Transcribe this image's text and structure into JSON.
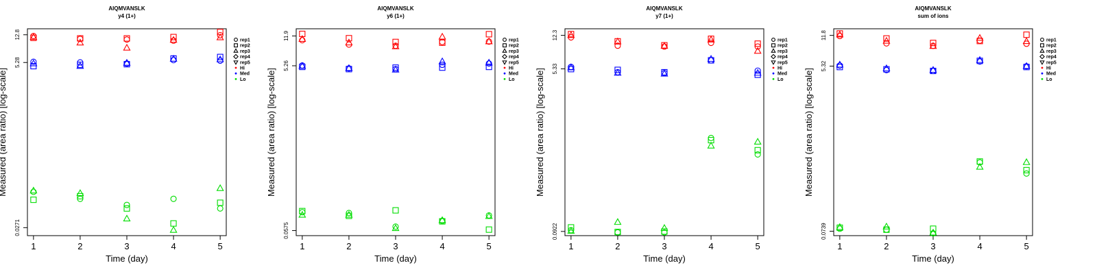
{
  "legend": [
    {
      "label": "rep1",
      "kind": "shape",
      "shape": "circle"
    },
    {
      "label": "rep2",
      "kind": "shape",
      "shape": "square"
    },
    {
      "label": "rep3",
      "kind": "shape",
      "shape": "triangle"
    },
    {
      "label": "rep4",
      "kind": "shape",
      "shape": "diamond"
    },
    {
      "label": "rep5",
      "kind": "shape",
      "shape": "triangle-down"
    },
    {
      "label": "Hi",
      "kind": "color",
      "color": "#ff0000"
    },
    {
      "label": "Med",
      "kind": "color",
      "color": "#0000ff"
    },
    {
      "label": "Lo",
      "kind": "color",
      "color": "#00dd00"
    }
  ],
  "colors": {
    "Hi": "#ff0000",
    "Med": "#0000ff",
    "Lo": "#00dd00"
  },
  "chart_data": [
    {
      "type": "scatter",
      "title": "AIQMVANSLK",
      "subtitle": "y4 (1+)",
      "xlabel": "Time (day)",
      "ylabel": "Measured (area ratio) [log-scale]",
      "x_ticks": [
        1,
        2,
        3,
        4,
        5
      ],
      "y_ticks": [
        "12.8",
        "5.28",
        "0.0271"
      ],
      "y_scale": "log",
      "ylim": [
        0.021,
        15.5
      ],
      "series": [
        {
          "group": "Hi",
          "rep": "rep1",
          "x": [
            1,
            2,
            3,
            4,
            5
          ],
          "y": [
            12.3,
            11.2,
            11.0,
            10.6,
            12.6
          ]
        },
        {
          "group": "Hi",
          "rep": "rep2",
          "x": [
            1,
            2,
            3,
            4,
            5
          ],
          "y": [
            11.6,
            11.4,
            11.4,
            11.9,
            14.0
          ]
        },
        {
          "group": "Hi",
          "rep": "rep3",
          "x": [
            1,
            2,
            3,
            4,
            5
          ],
          "y": [
            11.8,
            9.9,
            8.4,
            10.8,
            11.7
          ]
        },
        {
          "group": "Med",
          "rep": "rep1",
          "x": [
            1,
            2,
            3,
            4,
            5
          ],
          "y": [
            5.4,
            5.3,
            5.1,
            5.7,
            5.6
          ]
        },
        {
          "group": "Med",
          "rep": "rep2",
          "x": [
            1,
            2,
            3,
            4,
            5
          ],
          "y": [
            4.7,
            4.9,
            5.0,
            6.0,
            6.3
          ]
        },
        {
          "group": "Med",
          "rep": "rep3",
          "x": [
            1,
            2,
            3,
            4,
            5
          ],
          "y": [
            5.1,
            4.7,
            5.2,
            5.9,
            5.8
          ]
        },
        {
          "group": "Lo",
          "rep": "rep1",
          "x": [
            1,
            2,
            3,
            4,
            5
          ],
          "y": [
            0.085,
            0.068,
            0.056,
            0.068,
            0.05
          ]
        },
        {
          "group": "Lo",
          "rep": "rep2",
          "x": [
            1,
            2,
            3,
            4,
            5
          ],
          "y": [
            0.066,
            0.074,
            0.05,
            0.031,
            0.06
          ]
        },
        {
          "group": "Lo",
          "rep": "rep3",
          "x": [
            1,
            2,
            3,
            4,
            5
          ],
          "y": [
            0.088,
            0.081,
            0.036,
            0.025,
            0.095
          ]
        }
      ]
    },
    {
      "type": "scatter",
      "title": "AIQMVANSLK",
      "subtitle": "y6 (1+)",
      "xlabel": "Time (day)",
      "ylabel": "Measured (area ratio) [log-scale]",
      "x_ticks": [
        1,
        2,
        3,
        4,
        5
      ],
      "y_ticks": [
        "11.9",
        "5.26",
        "0.0575"
      ],
      "y_scale": "log",
      "ylim": [
        0.05,
        14.5
      ],
      "series": [
        {
          "group": "Hi",
          "rep": "rep1",
          "x": [
            1,
            2,
            3,
            4,
            5
          ],
          "y": [
            10.6,
            9.4,
            9.1,
            10.1,
            10.2
          ]
        },
        {
          "group": "Hi",
          "rep": "rep2",
          "x": [
            1,
            2,
            3,
            4,
            5
          ],
          "y": [
            12.6,
            11.2,
            10.1,
            9.9,
            12.5
          ]
        },
        {
          "group": "Hi",
          "rep": "rep3",
          "x": [
            1,
            2,
            3,
            4,
            5
          ],
          "y": [
            10.9,
            9.9,
            8.9,
            11.6,
            10.2
          ]
        },
        {
          "group": "Med",
          "rep": "rep1",
          "x": [
            1,
            2,
            3,
            4,
            5
          ],
          "y": [
            5.3,
            4.9,
            4.8,
            5.4,
            5.6
          ]
        },
        {
          "group": "Med",
          "rep": "rep2",
          "x": [
            1,
            2,
            3,
            4,
            5
          ],
          "y": [
            5.1,
            4.8,
            5.0,
            5.0,
            5.1
          ]
        },
        {
          "group": "Med",
          "rep": "rep3",
          "x": [
            1,
            2,
            3,
            4,
            5
          ],
          "y": [
            5.2,
            4.9,
            4.7,
            5.9,
            5.7
          ]
        },
        {
          "group": "Lo",
          "rep": "rep1",
          "x": [
            1,
            2,
            3,
            4,
            5
          ],
          "y": [
            0.095,
            0.093,
            0.064,
            0.075,
            0.087
          ]
        },
        {
          "group": "Lo",
          "rep": "rep2",
          "x": [
            1,
            2,
            3,
            4,
            5
          ],
          "y": [
            0.098,
            0.086,
            0.1,
            0.074,
            0.059
          ]
        },
        {
          "group": "Lo",
          "rep": "rep3",
          "x": [
            1,
            2,
            3,
            4,
            5
          ],
          "y": [
            0.088,
            0.088,
            0.061,
            0.076,
            0.085
          ]
        }
      ]
    },
    {
      "type": "scatter",
      "title": "AIQMVANSLK",
      "subtitle": "y7 (1+)",
      "xlabel": "Time (day)",
      "ylabel": "Measured (area ratio) [log-scale]",
      "x_ticks": [
        1,
        2,
        3,
        4,
        5
      ],
      "y_ticks": [
        "12.3",
        "5.33",
        "0.0922"
      ],
      "y_scale": "log",
      "ylim": [
        0.083,
        14.5
      ],
      "series": [
        {
          "group": "Hi",
          "rep": "rep1",
          "x": [
            1,
            2,
            3,
            4,
            5
          ],
          "y": [
            11.7,
            9.5,
            9.3,
            10.2,
            9.3
          ]
        },
        {
          "group": "Hi",
          "rep": "rep2",
          "x": [
            1,
            2,
            3,
            4,
            5
          ],
          "y": [
            12.7,
            10.6,
            9.6,
            11.3,
            10.0
          ]
        },
        {
          "group": "Hi",
          "rep": "rep3",
          "x": [
            1,
            2,
            3,
            4,
            5
          ],
          "y": [
            12.3,
            10.5,
            9.4,
            11.0,
            8.3
          ]
        },
        {
          "group": "Med",
          "rep": "rep1",
          "x": [
            1,
            2,
            3,
            4,
            5
          ],
          "y": [
            5.6,
            4.9,
            4.8,
            6.6,
            5.1
          ]
        },
        {
          "group": "Med",
          "rep": "rep2",
          "x": [
            1,
            2,
            3,
            4,
            5
          ],
          "y": [
            5.3,
            5.2,
            4.9,
            6.6,
            4.6
          ]
        },
        {
          "group": "Med",
          "rep": "rep3",
          "x": [
            1,
            2,
            3,
            4,
            5
          ],
          "y": [
            5.5,
            4.8,
            4.7,
            6.8,
            4.8
          ]
        },
        {
          "group": "Lo",
          "rep": "rep1",
          "x": [
            1,
            2,
            3,
            4,
            5
          ],
          "y": [
            0.095,
            0.09,
            0.09,
            0.95,
            0.63
          ]
        },
        {
          "group": "Lo",
          "rep": "rep2",
          "x": [
            1,
            2,
            3,
            4,
            5
          ],
          "y": [
            0.102,
            0.091,
            0.092,
            0.9,
            0.7
          ]
        },
        {
          "group": "Lo",
          "rep": "rep3",
          "x": [
            1,
            2,
            3,
            4,
            5
          ],
          "y": [
            0.093,
            0.116,
            0.1,
            0.78,
            0.86
          ]
        }
      ]
    },
    {
      "type": "scatter",
      "title": "AIQMVANSLK",
      "subtitle": "sum of ions",
      "xlabel": "Time (day)",
      "ylabel": "Measured (area ratio) [log-scale]",
      "x_ticks": [
        1,
        2,
        3,
        4,
        5
      ],
      "y_ticks": [
        "11.8",
        "5.32",
        "0.0739"
      ],
      "y_scale": "log",
      "ylim": [
        0.066,
        14.0
      ],
      "series": [
        {
          "group": "Hi",
          "rep": "rep1",
          "x": [
            1,
            2,
            3,
            4,
            5
          ],
          "y": [
            11.6,
            9.6,
            9.0,
            10.3,
            9.5
          ]
        },
        {
          "group": "Hi",
          "rep": "rep2",
          "x": [
            1,
            2,
            3,
            4,
            5
          ],
          "y": [
            12.4,
            10.9,
            9.7,
            10.2,
            12.0
          ]
        },
        {
          "group": "Hi",
          "rep": "rep3",
          "x": [
            1,
            2,
            3,
            4,
            5
          ],
          "y": [
            12.0,
            10.2,
            8.9,
            11.0,
            10.1
          ]
        },
        {
          "group": "Med",
          "rep": "rep1",
          "x": [
            1,
            2,
            3,
            4,
            5
          ],
          "y": [
            5.4,
            4.8,
            4.7,
            6.0,
            5.3
          ]
        },
        {
          "group": "Med",
          "rep": "rep2",
          "x": [
            1,
            2,
            3,
            4,
            5
          ],
          "y": [
            5.2,
            4.9,
            4.7,
            6.1,
            5.2
          ]
        },
        {
          "group": "Med",
          "rep": "rep3",
          "x": [
            1,
            2,
            3,
            4,
            5
          ],
          "y": [
            5.5,
            5.0,
            4.8,
            6.2,
            5.3
          ]
        },
        {
          "group": "Lo",
          "rep": "rep1",
          "x": [
            1,
            2,
            3,
            4,
            5
          ],
          "y": [
            0.079,
            0.077,
            0.07,
            0.44,
            0.33
          ]
        },
        {
          "group": "Lo",
          "rep": "rep2",
          "x": [
            1,
            2,
            3,
            4,
            5
          ],
          "y": [
            0.081,
            0.077,
            0.079,
            0.45,
            0.36
          ]
        },
        {
          "group": "Lo",
          "rep": "rep3",
          "x": [
            1,
            2,
            3,
            4,
            5
          ],
          "y": [
            0.082,
            0.083,
            0.071,
            0.39,
            0.44
          ]
        }
      ]
    }
  ]
}
